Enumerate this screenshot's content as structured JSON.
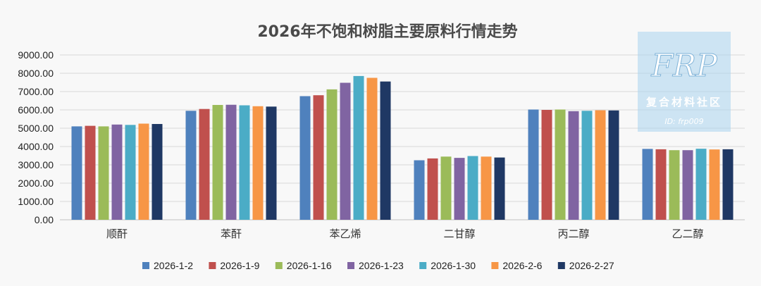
{
  "chart_data": {
    "type": "bar",
    "title": "2026年不饱和树脂主要原料行情走势",
    "categories": [
      "顺酐",
      "苯酐",
      "苯乙烯",
      "二甘醇",
      "丙二醇",
      "乙二醇"
    ],
    "ylim": [
      0,
      9000
    ],
    "yticks": [
      "0.00",
      "1000.00",
      "2000.00",
      "3000.00",
      "4000.00",
      "5000.00",
      "6000.00",
      "7000.00",
      "8000.00",
      "9000.00"
    ],
    "grid": true,
    "legend_position": "bottom",
    "series": [
      {
        "name": "2026-1-2",
        "color": "#4f81bd",
        "values": [
          5100,
          5950,
          6750,
          3250,
          6020,
          3870
        ]
      },
      {
        "name": "2026-1-9",
        "color": "#c0504d",
        "values": [
          5130,
          6050,
          6800,
          3350,
          6000,
          3850
        ]
      },
      {
        "name": "2026-1-16",
        "color": "#9bbb59",
        "values": [
          5100,
          6270,
          7120,
          3450,
          6020,
          3800
        ]
      },
      {
        "name": "2026-1-23",
        "color": "#8064a2",
        "values": [
          5200,
          6280,
          7480,
          3380,
          5930,
          3800
        ]
      },
      {
        "name": "2026-1-30",
        "color": "#4bacc6",
        "values": [
          5180,
          6250,
          7850,
          3480,
          5950,
          3880
        ]
      },
      {
        "name": "2026-2-6",
        "color": "#f79646",
        "values": [
          5250,
          6200,
          7750,
          3450,
          5980,
          3840
        ]
      },
      {
        "name": "2026-2-27",
        "color": "#1f3864",
        "values": [
          5230,
          6180,
          7550,
          3400,
          5970,
          3850
        ]
      }
    ]
  },
  "watermark": {
    "logo": "FRP",
    "subtitle": "复合材料社区",
    "id_text": "ID: frp009"
  }
}
